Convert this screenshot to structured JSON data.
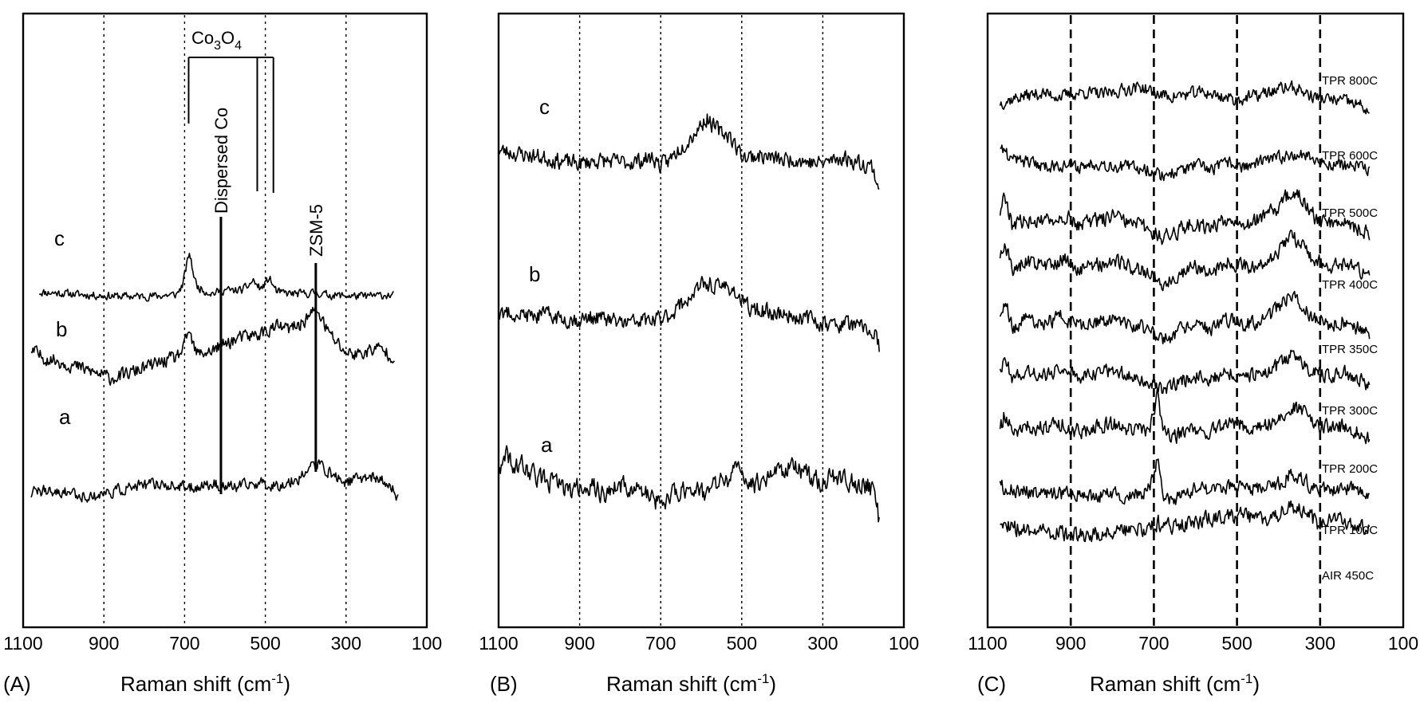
{
  "chart_data": [
    {
      "type": "line",
      "panel": "(A)",
      "xlabel": "Raman shift (cm-1)",
      "xlim": [
        1100,
        100
      ],
      "xticks": [
        1100,
        900,
        700,
        500,
        300,
        100
      ],
      "gridlines_x": [
        900,
        700,
        500,
        300
      ],
      "grid_style": "dotted",
      "series": [
        {
          "name": "c",
          "x": [
            1060,
            1000,
            960,
            900,
            850,
            800,
            760,
            720,
            705,
            695,
            688,
            680,
            670,
            650,
            630,
            600,
            580,
            555,
            540,
            530,
            520,
            510,
            498,
            490,
            480,
            470,
            450,
            420,
            390,
            375,
            360,
            340,
            300,
            260,
            230,
            200,
            180
          ],
          "y": [
            0.18,
            0.16,
            0.14,
            0.12,
            0.11,
            0.11,
            0.12,
            0.14,
            0.3,
            0.62,
            0.85,
            0.55,
            0.28,
            0.2,
            0.16,
            0.22,
            0.2,
            0.22,
            0.3,
            0.38,
            0.28,
            0.24,
            0.34,
            0.42,
            0.28,
            0.18,
            0.16,
            0.15,
            0.16,
            0.17,
            0.15,
            0.13,
            0.12,
            0.11,
            0.12,
            0.13,
            0.12
          ]
        },
        {
          "name": "b",
          "x": [
            1080,
            1050,
            1000,
            960,
            920,
            880,
            850,
            800,
            760,
            720,
            700,
            690,
            682,
            670,
            650,
            630,
            610,
            590,
            560,
            530,
            500,
            470,
            440,
            410,
            385,
            370,
            360,
            345,
            320,
            300,
            270,
            240,
            220,
            200,
            180
          ],
          "y": [
            0.62,
            0.55,
            0.5,
            0.45,
            0.4,
            0.35,
            0.38,
            0.45,
            0.5,
            0.55,
            0.65,
            0.82,
            0.7,
            0.58,
            0.6,
            0.62,
            0.66,
            0.7,
            0.74,
            0.76,
            0.8,
            0.85,
            0.82,
            0.88,
            0.98,
            1.0,
            0.92,
            0.8,
            0.68,
            0.6,
            0.58,
            0.62,
            0.64,
            0.6,
            0.55
          ]
        },
        {
          "name": "a",
          "x": [
            1080,
            1050,
            1020,
            990,
            960,
            930,
            900,
            870,
            840,
            800,
            760,
            720,
            690,
            660,
            630,
            600,
            570,
            540,
            510,
            480,
            450,
            420,
            400,
            380,
            360,
            340,
            320,
            300,
            280,
            260,
            240,
            220,
            200,
            180,
            170
          ],
          "y": [
            0.2,
            0.22,
            0.18,
            0.21,
            0.17,
            0.15,
            0.19,
            0.22,
            0.25,
            0.28,
            0.3,
            0.27,
            0.25,
            0.28,
            0.3,
            0.27,
            0.26,
            0.29,
            0.31,
            0.28,
            0.3,
            0.36,
            0.44,
            0.52,
            0.5,
            0.42,
            0.36,
            0.32,
            0.34,
            0.37,
            0.39,
            0.35,
            0.3,
            0.22,
            0.1
          ]
        }
      ],
      "annotations": {
        "co3o4": "Co3O4",
        "dispersed": "Dispersed Co",
        "zsm5": "ZSM-5",
        "co3o4_positions": [
          690,
          520,
          480
        ],
        "dispersed_position": 610,
        "zsm5_position": 375
      }
    },
    {
      "type": "line",
      "panel": "(B)",
      "xlabel": "Raman shift (cm-1)",
      "xlim": [
        1100,
        100
      ],
      "xticks": [
        1100,
        900,
        700,
        500,
        300,
        100
      ],
      "gridlines_x": [
        900,
        700,
        500,
        300
      ],
      "grid_style": "dotted",
      "series": [
        {
          "name": "c",
          "x": [
            1100,
            1060,
            1020,
            980,
            940,
            900,
            860,
            820,
            780,
            740,
            720,
            700,
            680,
            650,
            620,
            600,
            585,
            570,
            550,
            530,
            510,
            490,
            460,
            430,
            400,
            370,
            340,
            310,
            280,
            250,
            220,
            200,
            180,
            160
          ],
          "y": [
            0.55,
            0.52,
            0.5,
            0.47,
            0.44,
            0.42,
            0.45,
            0.44,
            0.43,
            0.46,
            0.48,
            0.4,
            0.45,
            0.58,
            0.7,
            0.8,
            0.86,
            0.78,
            0.72,
            0.7,
            0.55,
            0.48,
            0.5,
            0.48,
            0.45,
            0.47,
            0.44,
            0.42,
            0.45,
            0.48,
            0.44,
            0.42,
            0.4,
            0.18
          ]
        },
        {
          "name": "b",
          "x": [
            1100,
            1060,
            1020,
            980,
            940,
            900,
            860,
            820,
            780,
            740,
            720,
            700,
            680,
            650,
            620,
            600,
            580,
            560,
            540,
            520,
            500,
            480,
            450,
            420,
            390,
            360,
            330,
            300,
            270,
            240,
            210,
            190,
            170,
            160
          ],
          "y": [
            0.5,
            0.52,
            0.48,
            0.5,
            0.46,
            0.45,
            0.48,
            0.44,
            0.42,
            0.45,
            0.44,
            0.46,
            0.5,
            0.6,
            0.7,
            0.78,
            0.8,
            0.76,
            0.78,
            0.74,
            0.62,
            0.56,
            0.54,
            0.52,
            0.5,
            0.48,
            0.46,
            0.42,
            0.4,
            0.42,
            0.38,
            0.36,
            0.3,
            0.18
          ]
        },
        {
          "name": "a",
          "x": [
            1100,
            1080,
            1060,
            1040,
            1000,
            960,
            920,
            880,
            840,
            800,
            760,
            720,
            700,
            680,
            650,
            620,
            590,
            560,
            530,
            510,
            490,
            470,
            440,
            410,
            380,
            350,
            320,
            300,
            270,
            240,
            210,
            190,
            170,
            160
          ],
          "y": [
            0.52,
            0.68,
            0.58,
            0.6,
            0.5,
            0.46,
            0.4,
            0.45,
            0.38,
            0.44,
            0.42,
            0.34,
            0.28,
            0.36,
            0.4,
            0.44,
            0.38,
            0.46,
            0.5,
            0.58,
            0.5,
            0.44,
            0.52,
            0.56,
            0.6,
            0.54,
            0.5,
            0.46,
            0.52,
            0.48,
            0.44,
            0.46,
            0.34,
            0.14
          ]
        }
      ],
      "curve_labels": [
        "c",
        "b",
        "a"
      ]
    },
    {
      "type": "line",
      "panel": "(C)",
      "xlabel": "Raman shift (cm-1)",
      "xlim": [
        1100,
        100
      ],
      "xticks": [
        1100,
        900,
        700,
        500,
        300,
        100
      ],
      "gridlines_x": [
        900,
        700,
        500,
        300
      ],
      "grid_style": "dashed",
      "series": [
        {
          "name": "TPR 800C",
          "x": [
            1070,
            1020,
            970,
            920,
            870,
            820,
            770,
            730,
            700,
            660,
            620,
            580,
            540,
            500,
            460,
            420,
            380,
            350,
            320,
            280,
            240,
            200,
            180
          ],
          "y": [
            0.45,
            0.55,
            0.6,
            0.55,
            0.62,
            0.58,
            0.66,
            0.7,
            0.6,
            0.55,
            0.58,
            0.62,
            0.55,
            0.5,
            0.55,
            0.62,
            0.7,
            0.66,
            0.55,
            0.5,
            0.48,
            0.4,
            0.3
          ]
        },
        {
          "name": "TPR 600C",
          "x": [
            1070,
            1040,
            1000,
            960,
            920,
            880,
            840,
            800,
            760,
            720,
            680,
            640,
            600,
            560,
            520,
            480,
            440,
            400,
            360,
            330,
            300,
            260,
            220,
            190,
            180
          ],
          "y": [
            0.65,
            0.5,
            0.45,
            0.4,
            0.42,
            0.38,
            0.45,
            0.4,
            0.38,
            0.36,
            0.25,
            0.32,
            0.4,
            0.35,
            0.45,
            0.38,
            0.46,
            0.52,
            0.6,
            0.56,
            0.45,
            0.42,
            0.4,
            0.35,
            0.35
          ]
        },
        {
          "name": "TPR 500C",
          "x": [
            1070,
            1060,
            1040,
            1000,
            960,
            920,
            880,
            840,
            800,
            760,
            720,
            700,
            680,
            640,
            600,
            560,
            520,
            480,
            440,
            400,
            370,
            350,
            320,
            280,
            240,
            200,
            180
          ],
          "y": [
            0.6,
            0.85,
            0.45,
            0.55,
            0.5,
            0.6,
            0.48,
            0.52,
            0.58,
            0.5,
            0.45,
            0.4,
            0.3,
            0.42,
            0.5,
            0.45,
            0.58,
            0.5,
            0.55,
            0.7,
            0.9,
            0.82,
            0.6,
            0.5,
            0.55,
            0.4,
            0.35
          ]
        },
        {
          "name": "TPR 400C",
          "x": [
            1070,
            1060,
            1040,
            1000,
            960,
            920,
            880,
            840,
            800,
            760,
            720,
            700,
            680,
            640,
            600,
            560,
            520,
            480,
            440,
            400,
            370,
            350,
            320,
            280,
            240,
            200,
            180
          ],
          "y": [
            0.55,
            0.8,
            0.45,
            0.55,
            0.48,
            0.58,
            0.45,
            0.5,
            0.56,
            0.48,
            0.42,
            0.35,
            0.25,
            0.4,
            0.48,
            0.42,
            0.55,
            0.48,
            0.52,
            0.68,
            0.88,
            0.8,
            0.58,
            0.48,
            0.52,
            0.4,
            0.3
          ]
        },
        {
          "name": "TPR 350C",
          "x": [
            1070,
            1060,
            1040,
            1000,
            960,
            920,
            880,
            840,
            800,
            760,
            720,
            700,
            680,
            640,
            600,
            560,
            520,
            480,
            440,
            400,
            370,
            350,
            320,
            280,
            240,
            200,
            180
          ],
          "y": [
            0.5,
            0.78,
            0.42,
            0.52,
            0.46,
            0.56,
            0.42,
            0.48,
            0.54,
            0.46,
            0.4,
            0.32,
            0.22,
            0.38,
            0.46,
            0.4,
            0.52,
            0.46,
            0.5,
            0.66,
            0.86,
            0.78,
            0.55,
            0.46,
            0.5,
            0.38,
            0.28
          ]
        },
        {
          "name": "TPR 300C",
          "x": [
            1070,
            1060,
            1040,
            1000,
            960,
            920,
            880,
            840,
            800,
            760,
            720,
            700,
            680,
            640,
            600,
            560,
            520,
            480,
            440,
            400,
            370,
            350,
            320,
            280,
            240,
            200,
            180
          ],
          "y": [
            0.45,
            0.7,
            0.4,
            0.48,
            0.44,
            0.52,
            0.4,
            0.46,
            0.5,
            0.44,
            0.38,
            0.3,
            0.2,
            0.35,
            0.42,
            0.38,
            0.48,
            0.42,
            0.46,
            0.56,
            0.72,
            0.66,
            0.5,
            0.42,
            0.46,
            0.36,
            0.26
          ]
        },
        {
          "name": "TPR 200C",
          "x": [
            1070,
            1060,
            1040,
            1000,
            960,
            920,
            880,
            840,
            800,
            760,
            720,
            700,
            690,
            680,
            660,
            640,
            600,
            560,
            520,
            480,
            440,
            400,
            370,
            350,
            320,
            280,
            240,
            200,
            180
          ],
          "y": [
            0.4,
            0.6,
            0.4,
            0.45,
            0.42,
            0.48,
            0.38,
            0.44,
            0.48,
            0.42,
            0.4,
            0.55,
            0.95,
            0.4,
            0.3,
            0.35,
            0.42,
            0.38,
            0.5,
            0.45,
            0.42,
            0.55,
            0.72,
            0.68,
            0.5,
            0.42,
            0.45,
            0.36,
            0.28
          ]
        },
        {
          "name": "TPR 100C",
          "x": [
            1070,
            1040,
            1000,
            960,
            920,
            880,
            840,
            800,
            760,
            720,
            700,
            690,
            680,
            660,
            640,
            600,
            560,
            520,
            480,
            440,
            400,
            370,
            350,
            320,
            280,
            240,
            200,
            180
          ],
          "y": [
            0.45,
            0.4,
            0.38,
            0.35,
            0.32,
            0.36,
            0.3,
            0.34,
            0.32,
            0.35,
            0.6,
            0.95,
            0.35,
            0.25,
            0.3,
            0.4,
            0.38,
            0.45,
            0.42,
            0.4,
            0.48,
            0.62,
            0.58,
            0.45,
            0.4,
            0.42,
            0.35,
            0.3
          ]
        },
        {
          "name": "AIR 450C",
          "x": [
            1070,
            1040,
            1000,
            960,
            920,
            880,
            840,
            800,
            760,
            720,
            700,
            690,
            680,
            660,
            640,
            600,
            560,
            520,
            480,
            440,
            400,
            370,
            350,
            320,
            300,
            280,
            240,
            200,
            180
          ],
          "y": [
            0.45,
            0.38,
            0.35,
            0.32,
            0.3,
            0.28,
            0.3,
            0.32,
            0.34,
            0.36,
            0.4,
            0.45,
            0.35,
            0.42,
            0.4,
            0.45,
            0.5,
            0.55,
            0.52,
            0.48,
            0.55,
            0.65,
            0.62,
            0.5,
            0.38,
            0.45,
            0.48,
            0.42,
            0.35
          ]
        }
      ]
    }
  ],
  "labels": {
    "panel_a": "(A)",
    "panel_b": "(B)",
    "panel_c": "(C)",
    "axis_title": "Raman shift (cm",
    "axis_sup": "-1",
    "axis_close": ")",
    "co3o4_base": "Co",
    "co3o4_sub1": "3",
    "co3o4_mid": "O",
    "co3o4_sub2": "4",
    "dispersed": "Dispersed Co",
    "zsm5": "ZSM-5",
    "tick_1100": "1100",
    "tick_900": "900",
    "tick_700": "700",
    "tick_500": "500",
    "tick_300": "300",
    "tick_100": "100"
  }
}
